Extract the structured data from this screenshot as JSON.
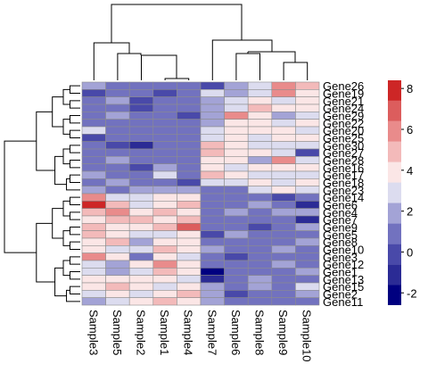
{
  "chart_data": {
    "type": "heatmap",
    "columns": [
      "Sample3",
      "Sample5",
      "Sample2",
      "Sample1",
      "Sample4",
      "Sample7",
      "Sample6",
      "Sample8",
      "Sample9",
      "Sample10"
    ],
    "rows": [
      "Gene26",
      "Gene19",
      "Gene21",
      "Gene24",
      "Gene29",
      "Gene22",
      "Gene20",
      "Gene25",
      "Gene30",
      "Gene27",
      "Gene28",
      "Gene16",
      "Gene17",
      "Gene18",
      "Gene23",
      "Gene14",
      "Gene6",
      "Gene4",
      "Gene7",
      "Gene9",
      "Gene5",
      "Gene8",
      "Gene10",
      "Gene3",
      "Gene12",
      "Gene1",
      "Gene13",
      "Gene15",
      "Gene2",
      "Gene11"
    ],
    "values": [
      [
        1.8,
        0.6,
        1.2,
        0.4,
        0.9,
        0.3,
        2.2,
        3.0,
        6.2,
        4.8
      ],
      [
        0.3,
        0.5,
        1.0,
        0.2,
        0.6,
        2.4,
        1.8,
        2.6,
        5.8,
        4.2
      ],
      [
        0.8,
        1.4,
        0.2,
        0.5,
        0.4,
        2.0,
        2.8,
        4.0,
        3.2,
        3.8
      ],
      [
        1.2,
        0.9,
        0.3,
        0.6,
        0.7,
        1.5,
        3.2,
        4.4,
        3.6,
        3.4
      ],
      [
        1.0,
        1.6,
        0.5,
        0.8,
        0.2,
        1.8,
        5.8,
        4.2,
        1.6,
        3.0
      ],
      [
        0.6,
        1.2,
        0.8,
        1.0,
        0.5,
        1.6,
        4.0,
        3.8,
        3.0,
        4.2
      ],
      [
        2.6,
        0.4,
        0.6,
        1.2,
        1.0,
        3.0,
        3.6,
        3.4,
        3.8,
        2.8
      ],
      [
        0.2,
        0.6,
        0.4,
        0.7,
        0.9,
        2.6,
        4.2,
        2.8,
        3.4,
        3.6
      ],
      [
        0.5,
        0.3,
        -1.6,
        0.8,
        0.6,
        4.4,
        3.4,
        2.8,
        3.2,
        2.4
      ],
      [
        0.4,
        0.8,
        0.6,
        1.0,
        0.7,
        4.6,
        3.8,
        3.6,
        2.6,
        0.3
      ],
      [
        0.7,
        1.8,
        0.9,
        0.4,
        1.3,
        3.8,
        4.0,
        1.6,
        5.4,
        2.8
      ],
      [
        0.9,
        0.5,
        0.3,
        1.4,
        0.8,
        3.6,
        3.0,
        4.2,
        3.8,
        3.4
      ],
      [
        1.4,
        1.0,
        0.7,
        2.6,
        1.1,
        4.8,
        3.6,
        2.8,
        3.2,
        2.6
      ],
      [
        0.8,
        1.5,
        1.1,
        0.6,
        0.3,
        2.8,
        3.0,
        3.6,
        2.4,
        3.8
      ],
      [
        1.6,
        1.2,
        1.8,
        2.2,
        1.4,
        1.2,
        0.8,
        3.2,
        3.6,
        3.0
      ],
      [
        6.0,
        2.6,
        3.0,
        3.4,
        3.6,
        0.6,
        1.2,
        0.9,
        0.2,
        0.8
      ],
      [
        7.4,
        4.8,
        2.8,
        3.8,
        5.2,
        0.4,
        0.8,
        1.4,
        1.0,
        -0.8
      ],
      [
        4.4,
        5.8,
        3.8,
        4.6,
        4.0,
        0.8,
        1.6,
        1.2,
        1.5,
        1.8
      ],
      [
        3.8,
        5.2,
        4.6,
        3.6,
        4.4,
        1.2,
        0.4,
        1.0,
        0.7,
        -1.2
      ],
      [
        4.6,
        4.0,
        3.4,
        4.8,
        7.2,
        1.0,
        0.6,
        0.2,
        1.2,
        1.6
      ],
      [
        5.0,
        3.6,
        3.2,
        3.0,
        4.2,
        0.2,
        1.4,
        0.8,
        1.0,
        1.2
      ],
      [
        4.2,
        4.6,
        1.8,
        3.8,
        3.4,
        0.6,
        0.4,
        1.2,
        0.8,
        1.4
      ],
      [
        3.6,
        3.0,
        2.4,
        4.4,
        3.8,
        1.4,
        0.6,
        0.8,
        1.6,
        1.0
      ],
      [
        5.4,
        3.4,
        1.2,
        4.2,
        3.0,
        0.8,
        0.2,
        1.0,
        0.6,
        1.2
      ],
      [
        3.2,
        1.6,
        3.6,
        5.6,
        4.2,
        0.4,
        1.0,
        0.6,
        1.4,
        0.8
      ],
      [
        2.8,
        1.4,
        3.0,
        4.6,
        3.6,
        -1.8,
        0.8,
        1.2,
        1.0,
        1.6
      ],
      [
        4.2,
        3.8,
        3.4,
        4.0,
        2.8,
        -1.4,
        0.4,
        1.4,
        0.8,
        1.0
      ],
      [
        3.4,
        4.4,
        3.8,
        3.2,
        3.6,
        1.6,
        1.2,
        1.8,
        1.0,
        2.6
      ],
      [
        2.6,
        3.6,
        2.8,
        3.8,
        4.4,
        1.8,
        0.2,
        1.2,
        0.6,
        1.4
      ],
      [
        2.2,
        3.0,
        4.0,
        5.0,
        3.4,
        1.4,
        0.6,
        1.0,
        1.2,
        0.8
      ]
    ],
    "palette": [
      "#000080",
      "#2b2b95",
      "#4949a9",
      "#7272bf",
      "#a3a3d6",
      "#dcdcef",
      "#fbe6e6",
      "#f3baba",
      "#e98b8b",
      "#dc5d5d",
      "#cd2626"
    ],
    "zlim": [
      -2.6,
      8.4
    ],
    "colorbar_ticks": [
      -2,
      0,
      2,
      4,
      6,
      8
    ]
  }
}
